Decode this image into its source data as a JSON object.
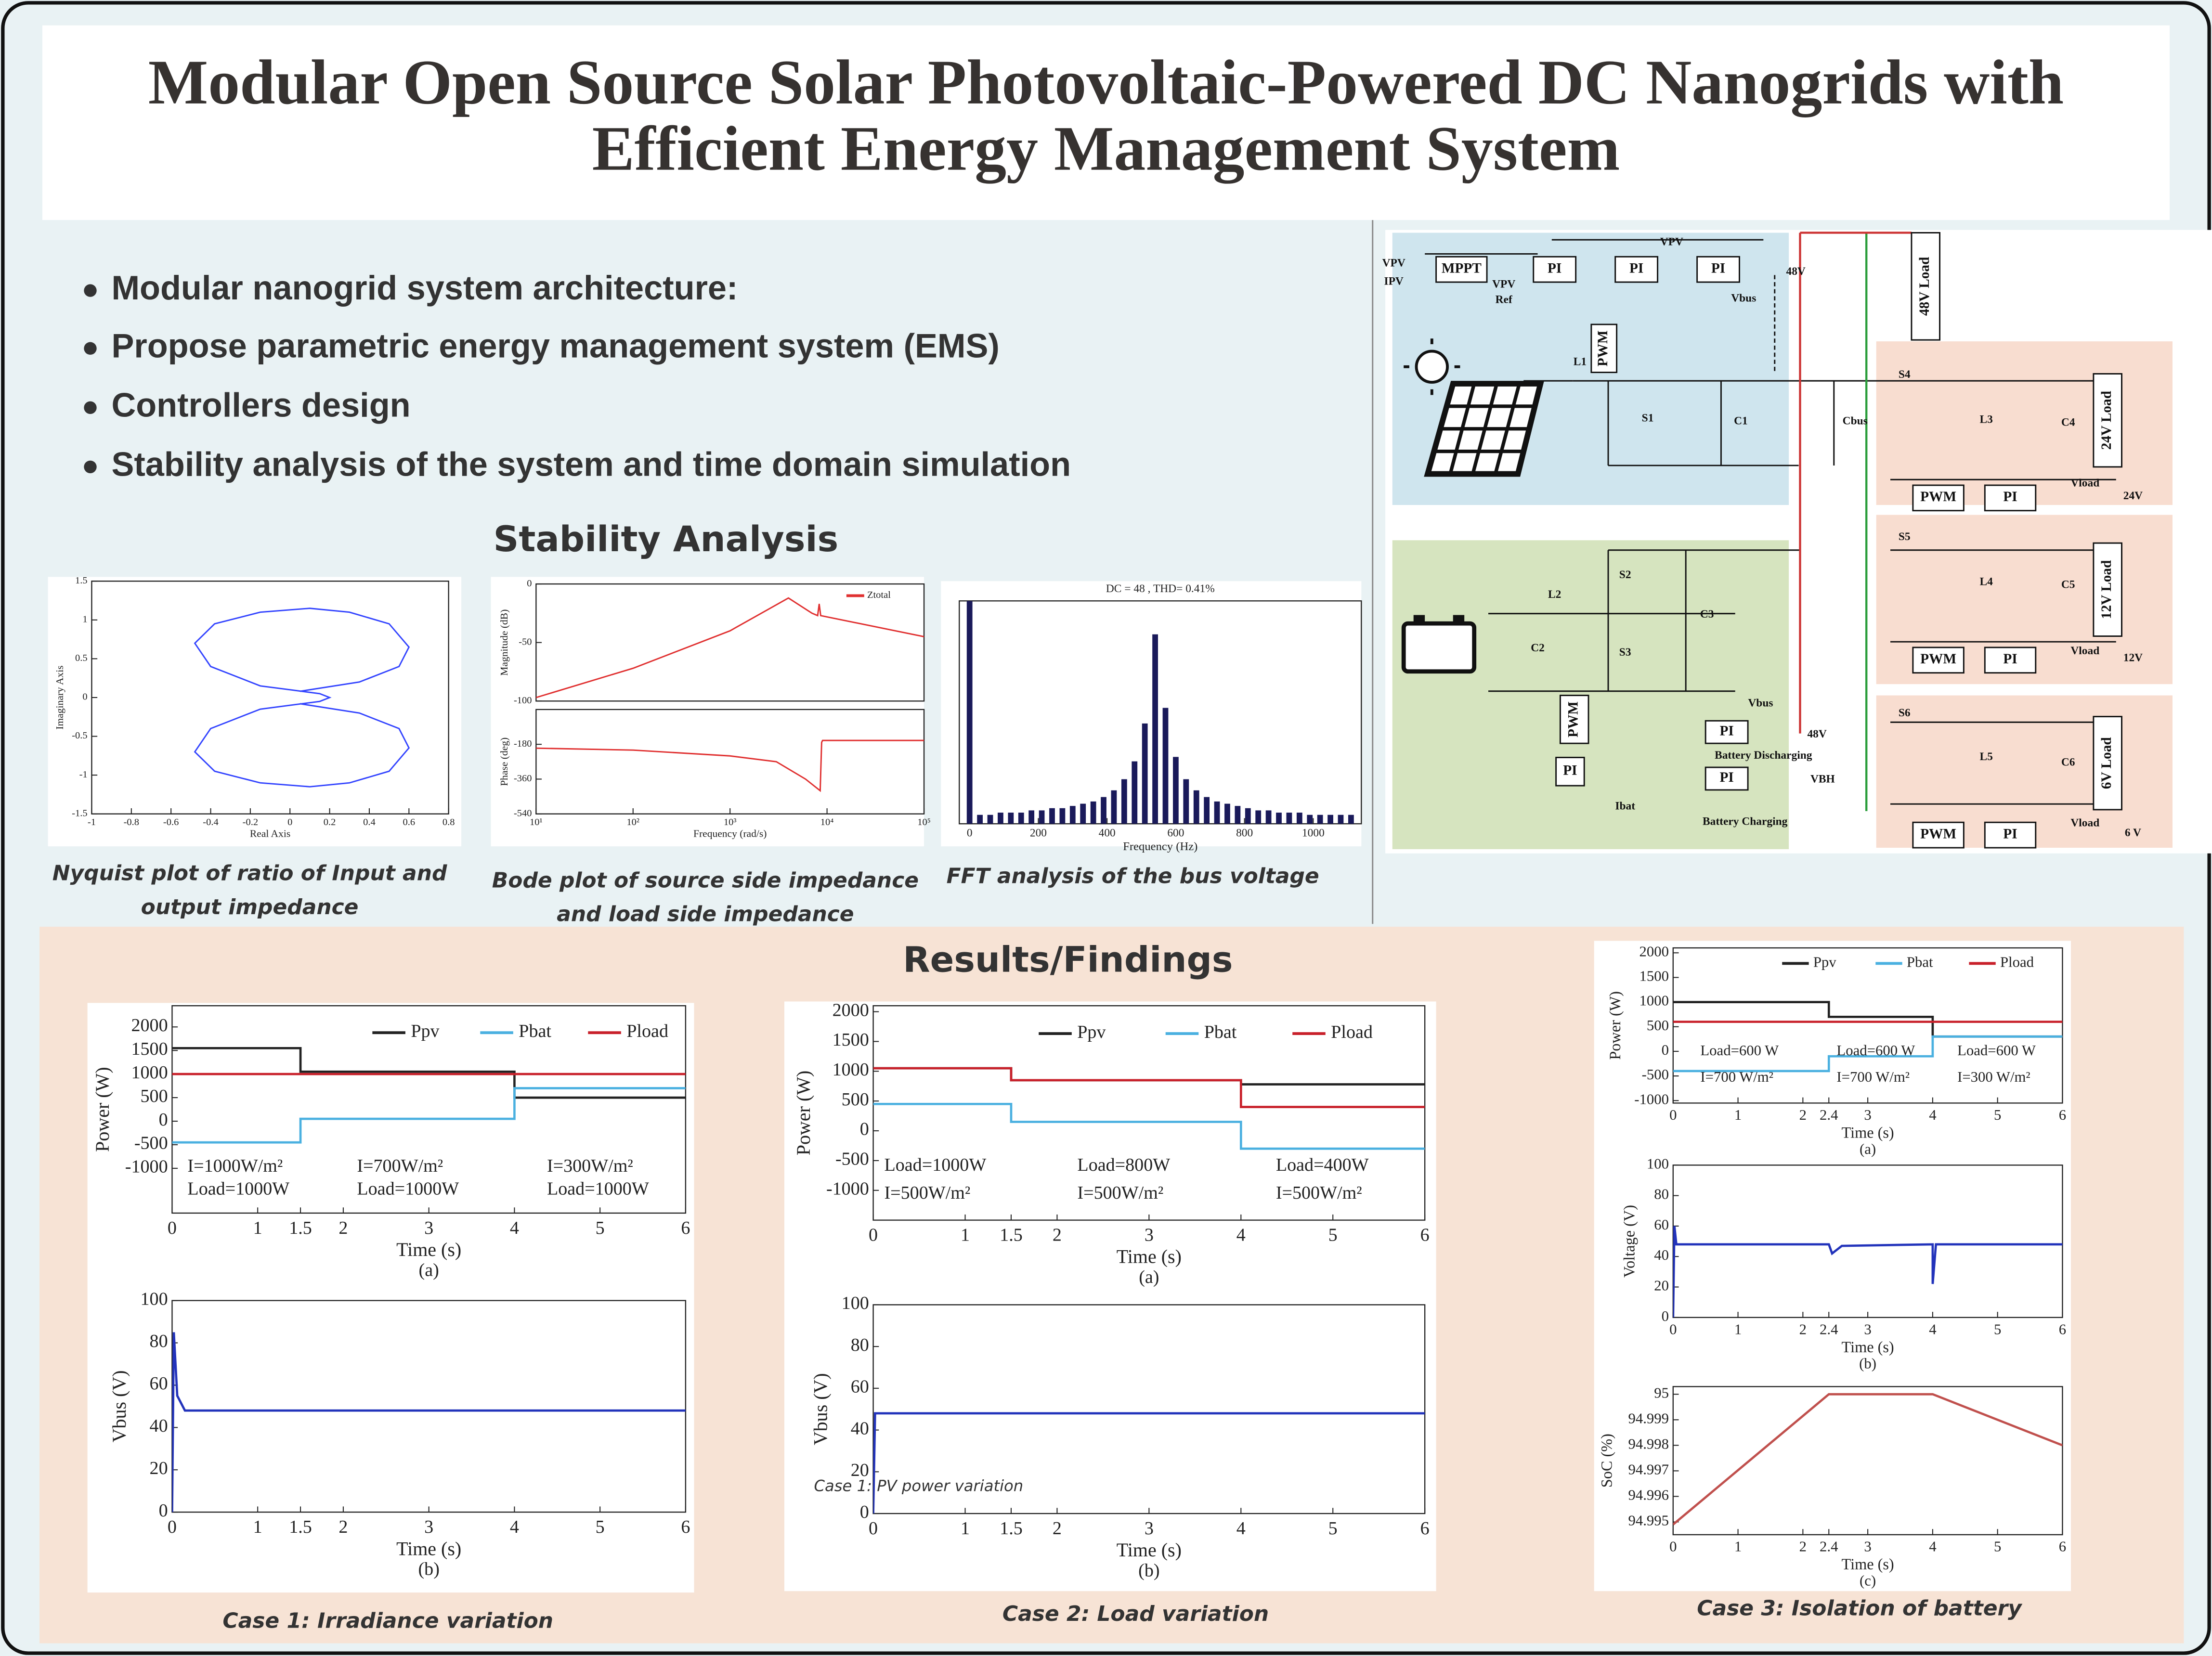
{
  "title": [
    "Modular Open Source Solar Photovoltaic-Powered DC Nanogrids with",
    "Efficient Energy Management System"
  ],
  "bullets": [
    "Modular nanogrid system architecture:",
    "Propose parametric energy management system (EMS)",
    "Controllers design",
    "Stability analysis of the system and time domain simulation"
  ],
  "stability": {
    "heading": "Stability Analysis",
    "nyquist": {
      "xlim": [
        -1,
        0.8
      ],
      "ylim": [
        -1.5,
        1.5
      ],
      "xticks": [
        -1,
        -0.8,
        -0.6,
        -0.4,
        -0.2,
        0,
        0.2,
        0.4,
        0.6,
        0.8
      ],
      "yticks": [
        -1.5,
        -1,
        -0.5,
        0,
        0.5,
        1,
        1.5
      ],
      "xlabel": "Real Axis",
      "ylabel": "Imaginary Axis",
      "series": [
        {
          "color": "#3344ff",
          "x": [
            0.05,
            0.35,
            0.55,
            0.6,
            0.5,
            0.3,
            0.1,
            -0.15,
            -0.38,
            -0.48,
            -0.4,
            -0.15,
            0,
            0.15,
            0.2,
            0.15,
            0,
            -0.15,
            -0.4,
            -0.48,
            -0.38,
            -0.15,
            0.1,
            0.3,
            0.5,
            0.6,
            0.55,
            0.35,
            0.05
          ],
          "values": [
            0.08,
            0.2,
            0.4,
            0.65,
            0.95,
            1.1,
            1.15,
            1.1,
            0.95,
            0.7,
            0.4,
            0.15,
            0.1,
            0.05,
            0,
            -0.05,
            -0.1,
            -0.15,
            -0.4,
            -0.7,
            -0.95,
            -1.1,
            -1.15,
            -1.1,
            -0.95,
            -0.65,
            -0.4,
            -0.2,
            -0.08
          ]
        }
      ],
      "caption": [
        "Nyquist plot of ratio of Input and",
        "output impedance"
      ]
    },
    "bode": {
      "magnitude": {
        "log": "x",
        "xlim": [
          10,
          100000
        ],
        "ylim": [
          -100,
          0
        ],
        "xticks": [],
        "yticks": [
          -100,
          -50,
          0
        ],
        "ylabel": "Magnitude (dB)",
        "series": [
          {
            "name": "Ztotal",
            "color": "#e03030",
            "x": [
              10,
              100,
              1000,
              4000,
              7000,
              8000,
              8300,
              8600,
              100000
            ],
            "values": [
              -97,
              -72,
              -40,
              -12,
              -25,
              -27,
              -17,
              -27,
              -45
            ]
          }
        ]
      },
      "phase": {
        "log": "x",
        "xlim": [
          10,
          100000
        ],
        "ylim": [
          -540,
          0
        ],
        "xticks": [
          {
            "value": 10,
            "label": "10¹"
          },
          {
            "value": 100,
            "label": "10²"
          },
          {
            "value": 1000,
            "label": "10³"
          },
          {
            "value": 10000,
            "label": "10⁴"
          },
          {
            "value": 100000,
            "label": "10⁵"
          }
        ],
        "yticks": [
          -540,
          -360,
          -180
        ],
        "xlabel": "Frequency (rad/s)",
        "ylabel": "Phase (deg)",
        "series": [
          {
            "color": "#e03030",
            "x": [
              10,
              100,
              1000,
              3000,
              6000,
              8500,
              8800,
              9000,
              100000
            ],
            "values": [
              -200,
              -210,
              -240,
              -270,
              -360,
              -420,
              -170,
              -160,
              -160
            ]
          }
        ]
      },
      "caption": [
        "Bode plot of source side impedance",
        "and load side impedance"
      ]
    },
    "fft": {
      "title": "DC = 48 , THD= 0.41%",
      "xlim": [
        -30,
        1140
      ],
      "ylim": [
        0,
        1
      ],
      "xticks": [
        0,
        200,
        400,
        600,
        800,
        1000
      ],
      "xlabel": "Frequency (Hz)",
      "bars": {
        "color": "#1a1a5a",
        "x": [
          0,
          30,
          60,
          90,
          120,
          150,
          180,
          210,
          240,
          270,
          300,
          330,
          360,
          390,
          420,
          450,
          480,
          510,
          540,
          570,
          600,
          630,
          660,
          690,
          720,
          750,
          780,
          810,
          840,
          870,
          900,
          930,
          960,
          990,
          1020,
          1050,
          1080,
          1110
        ],
        "values": [
          1,
          0.04,
          0.04,
          0.05,
          0.05,
          0.05,
          0.06,
          0.06,
          0.07,
          0.07,
          0.08,
          0.09,
          0.1,
          0.12,
          0.15,
          0.2,
          0.28,
          0.45,
          0.85,
          0.52,
          0.3,
          0.2,
          0.15,
          0.12,
          0.1,
          0.09,
          0.08,
          0.07,
          0.06,
          0.06,
          0.05,
          0.05,
          0.05,
          0.04,
          0.04,
          0.04,
          0.04,
          0.04
        ]
      },
      "caption": [
        "FFT analysis of the bus voltage"
      ]
    }
  },
  "diagram": {
    "labels": [
      "VPV",
      "IPV",
      "MPPT",
      "VPV",
      "Ref",
      "PI",
      "PI",
      "VPV",
      "PI",
      "48V",
      "Vbus",
      "PWM",
      "L1",
      "S1",
      "C1",
      "Cbus",
      "48V Load",
      "S4",
      "L3",
      "C4",
      "24V Load",
      "PWM",
      "PI",
      "Vload",
      "24V",
      "S5",
      "L4",
      "C5",
      "12V Load",
      "PWM",
      "PI",
      "Vload",
      "12V",
      "S6",
      "L5",
      "C6",
      "6V Load",
      "PWM",
      "PI",
      "Vload",
      "6 V",
      "L2",
      "S2",
      "S3",
      "C3",
      "C2",
      "Vbus",
      "PI",
      "48V",
      "Battery Discharging",
      "PWM",
      "PI",
      "PI",
      "Ibat",
      "VBH",
      "Battery Charging"
    ]
  },
  "results": {
    "heading": "Results/Findings",
    "case1": {
      "power": {
        "xlim": [
          0,
          6
        ],
        "ylim": [
          -1950,
          2450
        ],
        "xticks": [
          0,
          1,
          1.5,
          2,
          3,
          4,
          5,
          6
        ],
        "yticks": [
          -1000,
          -500,
          0,
          500,
          1000,
          1500,
          2000
        ],
        "xlabel": "Time (s)",
        "ylabel": "Power (W)",
        "sublabel": "(a)",
        "series": [
          {
            "name": "Ppv",
            "color": "#222222",
            "x": [
              0,
              1.5,
              1.5,
              4,
              4,
              6
            ],
            "values": [
              1550,
              1550,
              1050,
              1050,
              500,
              500
            ]
          },
          {
            "name": "Pbat",
            "color": "#4ab0e0",
            "x": [
              0,
              1.5,
              1.5,
              4,
              4,
              6
            ],
            "values": [
              -450,
              -450,
              50,
              50,
              700,
              700
            ]
          },
          {
            "name": "Pload",
            "color": "#c8202a",
            "x": [
              0,
              6
            ],
            "values": [
              1000,
              1000
            ]
          }
        ],
        "annotations": [
          "I=1000W/m²",
          "Load=1000W",
          "I=700W/m²",
          "Load=1000W",
          "I=300W/m²",
          "Load=1000W"
        ]
      },
      "vbus": {
        "xlim": [
          0,
          6
        ],
        "ylim": [
          0,
          100
        ],
        "xticks": [
          0,
          1,
          1.5,
          2,
          3,
          4,
          5,
          6
        ],
        "yticks": [
          0,
          20,
          40,
          60,
          80,
          100
        ],
        "xlabel": "Time (s)",
        "ylabel": "Vbus (V)",
        "sublabel": "(b)",
        "series": [
          {
            "color": "#2233bb",
            "x": [
              0,
              0.02,
              0.06,
              0.15,
              6
            ],
            "values": [
              0,
              85,
              55,
              48,
              48
            ]
          }
        ]
      },
      "caption": "Case 1: Irradiance variation"
    },
    "case2": {
      "power": {
        "xlim": [
          0,
          6
        ],
        "ylim": [
          -1500,
          2100
        ],
        "xticks": [
          0,
          1,
          1.5,
          2,
          3,
          4,
          5,
          6
        ],
        "yticks": [
          -1000,
          -500,
          0,
          500,
          1000,
          1500,
          2000
        ],
        "xlabel": "Time (s)",
        "ylabel": "Power (W)",
        "sublabel": "(a)",
        "series": [
          {
            "name": "Ppv",
            "color": "#222222",
            "x": [
              0,
              1.5,
              1.5,
              4,
              4,
              6
            ],
            "values": [
              1050,
              1050,
              850,
              850,
              780,
              780
            ]
          },
          {
            "name": "Pbat",
            "color": "#4ab0e0",
            "x": [
              0,
              1.5,
              1.5,
              4,
              4,
              6
            ],
            "values": [
              450,
              450,
              150,
              150,
              -300,
              -300
            ]
          },
          {
            "name": "Pload",
            "color": "#c8202a",
            "x": [
              0,
              1.5,
              1.5,
              4,
              4,
              6
            ],
            "values": [
              1050,
              1050,
              850,
              850,
              400,
              400
            ]
          }
        ],
        "annotations": [
          "Load=1000W",
          "I=500W/m²",
          "Load=800W",
          "I=500W/m²",
          "Load=400W",
          "I=500W/m²"
        ]
      },
      "vbus": {
        "xlim": [
          0,
          6
        ],
        "ylim": [
          0,
          100
        ],
        "xticks": [
          0,
          1,
          1.5,
          2,
          3,
          4,
          5,
          6
        ],
        "yticks": [
          0,
          20,
          40,
          60,
          80,
          100
        ],
        "xlabel": "Time (s)",
        "ylabel": "Vbus (V)",
        "sublabel": "(b)",
        "series": [
          {
            "color": "#2233bb",
            "x": [
              0,
              0.02,
              6
            ],
            "values": [
              0,
              48,
              48
            ]
          }
        ]
      },
      "overlay": "Case 1: PV power variation",
      "caption": "Case 2: Load variation"
    },
    "case3": {
      "power": {
        "xlim": [
          0,
          6
        ],
        "ylim": [
          -1050,
          2100
        ],
        "xticks": [
          0,
          1,
          2,
          2.4,
          3,
          4,
          5,
          6
        ],
        "yticks": [
          -1000,
          -500,
          0,
          500,
          1000,
          1500,
          2000
        ],
        "xlabel": "Time (s)",
        "ylabel": "Power (W)",
        "sublabel": "(a)",
        "series": [
          {
            "name": "Ppv",
            "color": "#222222",
            "x": [
              0,
              2.4,
              2.4,
              4,
              4,
              6
            ],
            "values": [
              1000,
              1000,
              700,
              700,
              300,
              300
            ]
          },
          {
            "name": "Pbat",
            "color": "#4ab0e0",
            "x": [
              0,
              2.4,
              2.4,
              4,
              4,
              6
            ],
            "values": [
              -400,
              -400,
              -100,
              -100,
              300,
              300
            ]
          },
          {
            "name": "Pload",
            "color": "#c8202a",
            "x": [
              0,
              6
            ],
            "values": [
              600,
              600
            ]
          }
        ],
        "annotations": [
          "Load=600 W",
          "I=700 W/m²",
          "Load=600 W",
          "I=700 W/m²",
          "Load=600 W",
          "I=300 W/m²"
        ]
      },
      "voltage": {
        "xlim": [
          0,
          6
        ],
        "ylim": [
          0,
          100
        ],
        "xticks": [
          0,
          1,
          2,
          2.4,
          3,
          4,
          5,
          6
        ],
        "yticks": [
          0,
          20,
          40,
          60,
          80,
          100
        ],
        "xlabel": "Time (s)",
        "ylabel": "Voltage (V)",
        "sublabel": "(b)",
        "series": [
          {
            "color": "#2233bb",
            "x": [
              0,
              0.02,
              0.05,
              2.4,
              2.45,
              2.6,
              4,
              4,
              4.05,
              6
            ],
            "values": [
              0,
              60,
              48,
              48,
              42,
              47,
              48,
              22,
              48,
              48
            ]
          }
        ]
      },
      "soc": {
        "xlim": [
          0,
          6
        ],
        "ylim": [
          94.9945,
          95.0003
        ],
        "xticks": [
          0,
          1,
          2,
          2.4,
          3,
          4,
          5,
          6
        ],
        "yticks": [
          94.995,
          94.996,
          94.997,
          94.998,
          94.999,
          95
        ],
        "xlabel": "Time (s)",
        "ylabel": "SoC (%)",
        "sublabel": "(c)",
        "series": [
          {
            "color": "#c0504d",
            "x": [
              0,
              2.4,
              4,
              6
            ],
            "values": [
              94.9949,
              95,
              95,
              94.998
            ]
          }
        ]
      },
      "caption": "Case 3: Isolation of battery"
    }
  }
}
